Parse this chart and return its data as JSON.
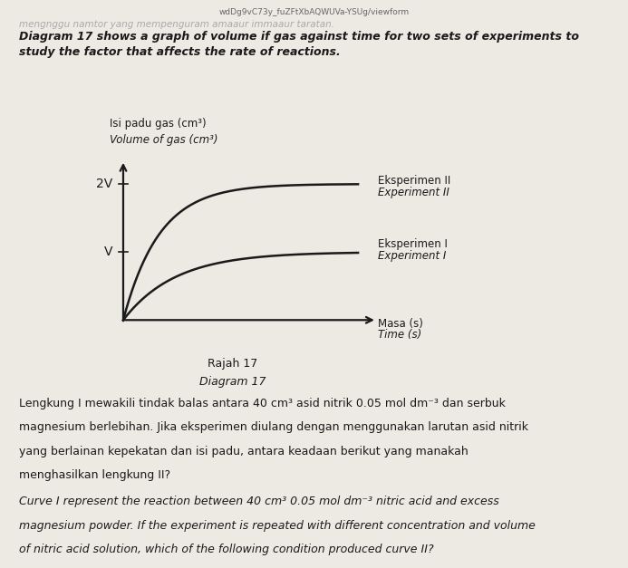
{
  "background_color": "#edeae4",
  "url_text": "wdDg9vC73y_fuZFtXbAQWUVa-YSUg/viewform",
  "intro_line1": "Diagram 17 shows a graph of volume if gas against time for two sets of experiments to",
  "intro_line2": "study the factor that affects the rate of reactions.",
  "ylabel_malay": "Isi padu gas (cm³)",
  "ylabel_english": "Volume of gas (cm³)",
  "xlabel_malay": "Masa (s)",
  "xlabel_english": "Time (s)",
  "ytick_1": "V",
  "ytick_2": "2V",
  "label_exp2_malay": "Eksperimen II",
  "label_exp2_english": "Experiment II",
  "label_exp1_malay": "Eksperimen I",
  "label_exp1_english": "Experiment I",
  "caption_malay": "Rajah 17",
  "caption_english": "Diagram 17",
  "malay_para": "Lengkung I mewakili tindak balas antara 40 cm³ asid nitrik 0.05 mol dm⁻³ dan serbuk magnesium berlebihan. Jika eksperimen diulang dengan menggunakan larutan asid nitrik yang berlainan kepekatan dan isi padu, antara keadaan berikut yang manakah menghasilkan lengkung II?",
  "eng_para": "Curve I represent the reaction between 40 cm³ 0.05 mol dm⁻³ nitric acid and excess magnesium powder. If the experiment is repeated with different concentration and volume of nitric acid solution, which of the following condition produced curve II?",
  "curve1_plateau": 1.0,
  "curve2_plateau": 2.0,
  "curve_color": "#1a1a1a",
  "text_color": "#1a1a1a",
  "axis_color": "#1a1a1a",
  "curve1_rate": 0.45,
  "curve2_rate": 0.65
}
